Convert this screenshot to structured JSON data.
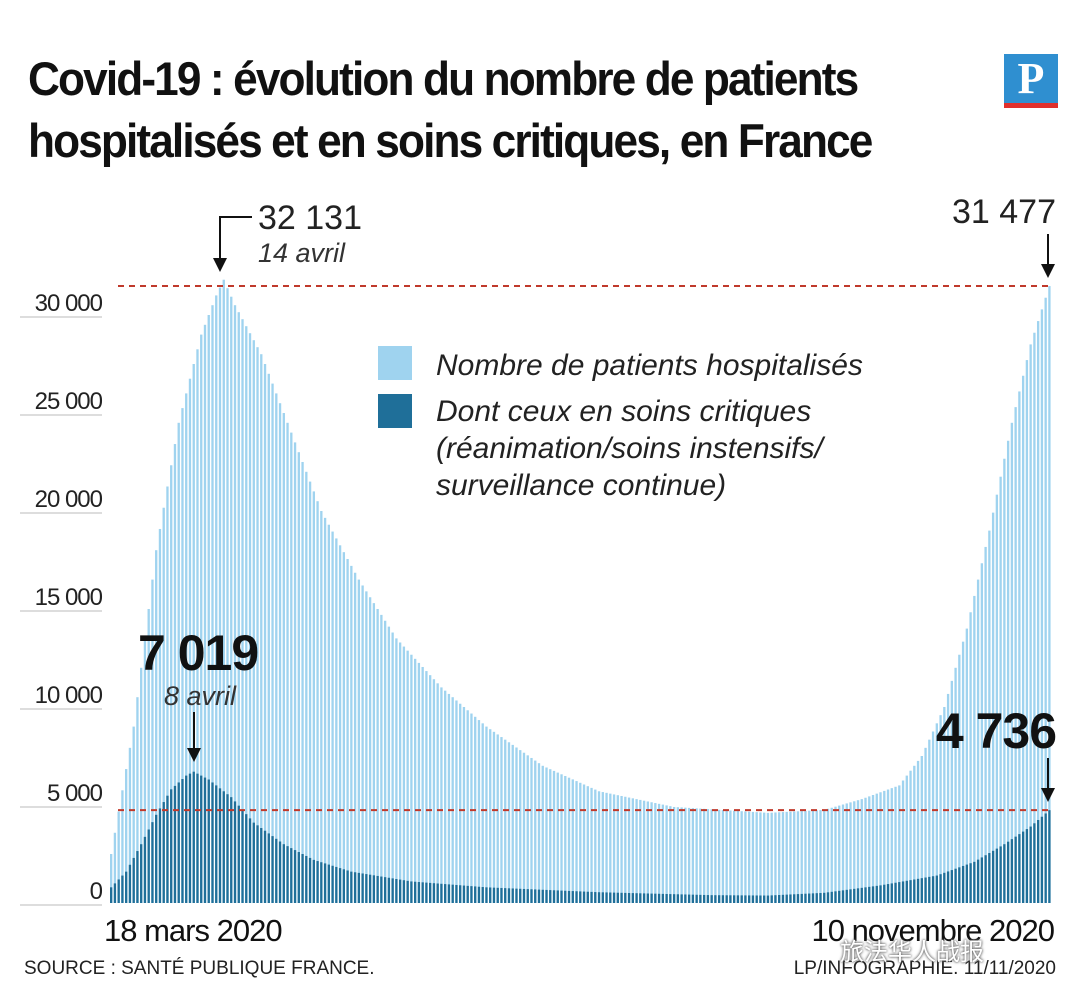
{
  "title": "Covid-19 : évolution du nombre de patients hospitalisés et en soins critiques, en France",
  "logo_letter": "P",
  "source": "SOURCE : SANTÉ PUBLIQUE FRANCE.",
  "credit": "LP/INFOGRAPHIE. 11/11/2020",
  "watermark": "旅法华人战报",
  "chart_data": {
    "type": "bar",
    "x_start_label": "18 mars 2020",
    "x_end_label": "10 novembre 2020",
    "ylim": [
      0,
      31477
    ],
    "yticks": [
      0,
      5000,
      10000,
      15000,
      20000,
      25000,
      30000
    ],
    "ytick_labels": [
      "0",
      "5 000",
      "10 000",
      "15 000",
      "20 000",
      "25 000",
      "30 000"
    ],
    "colors": {
      "hospitalised": "#9fd3ef",
      "critical": "#1f6f99",
      "reference": "#c0392b"
    },
    "legend": [
      {
        "label": "Nombre de patients hospitalisés",
        "color": "#9fd3ef"
      },
      {
        "label": "Dont ceux en soins critiques (réanimation/soins instensifs/ surveillance continue)",
        "color": "#1f6f99"
      }
    ],
    "annotations": {
      "hosp_peak_value": "32 131",
      "hosp_peak_date": "14 avril",
      "hosp_last_value": "31 477",
      "crit_peak_value": "7 019",
      "crit_peak_date": "8 avril",
      "crit_last_value": "4 736"
    },
    "series": [
      {
        "name": "Nombre de patients hospitalisés",
        "keyframes": [
          [
            0,
            2500
          ],
          [
            6,
            9000
          ],
          [
            12,
            18000
          ],
          [
            18,
            24500
          ],
          [
            24,
            29000
          ],
          [
            28,
            31000
          ],
          [
            30,
            31800
          ],
          [
            33,
            30500
          ],
          [
            40,
            28000
          ],
          [
            48,
            24000
          ],
          [
            56,
            20000
          ],
          [
            66,
            16500
          ],
          [
            76,
            13500
          ],
          [
            88,
            11000
          ],
          [
            100,
            9000
          ],
          [
            115,
            7000
          ],
          [
            130,
            5700
          ],
          [
            150,
            4900
          ],
          [
            175,
            4600
          ],
          [
            190,
            4750
          ],
          [
            200,
            5300
          ],
          [
            210,
            6000
          ],
          [
            216,
            7500
          ],
          [
            222,
            10000
          ],
          [
            228,
            14000
          ],
          [
            234,
            19000
          ],
          [
            240,
            24500
          ],
          [
            245,
            28500
          ],
          [
            250,
            31477
          ]
        ]
      },
      {
        "name": "Dont ceux en soins critiques",
        "keyframes": [
          [
            0,
            800
          ],
          [
            4,
            1600
          ],
          [
            8,
            3000
          ],
          [
            12,
            4500
          ],
          [
            16,
            5800
          ],
          [
            20,
            6500
          ],
          [
            22,
            6700
          ],
          [
            26,
            6300
          ],
          [
            32,
            5400
          ],
          [
            38,
            4100
          ],
          [
            46,
            3000
          ],
          [
            54,
            2200
          ],
          [
            64,
            1600
          ],
          [
            80,
            1100
          ],
          [
            100,
            800
          ],
          [
            130,
            550
          ],
          [
            160,
            400
          ],
          [
            175,
            380
          ],
          [
            190,
            520
          ],
          [
            205,
            900
          ],
          [
            220,
            1400
          ],
          [
            230,
            2100
          ],
          [
            238,
            3000
          ],
          [
            245,
            3900
          ],
          [
            250,
            4736
          ]
        ]
      }
    ]
  }
}
